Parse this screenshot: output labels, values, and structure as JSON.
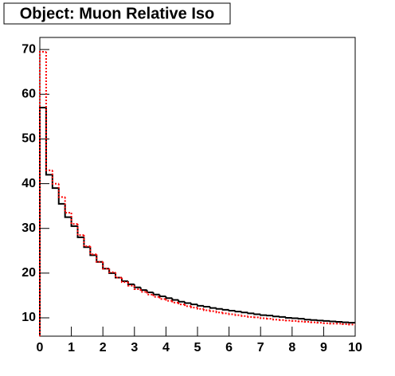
{
  "chart_data": {
    "type": "histogram",
    "title": "Object: Muon Relative Iso",
    "bins": [
      0,
      0.2,
      0.4,
      0.6,
      0.8,
      1,
      1.2,
      1.4,
      1.6,
      1.8,
      2,
      2.2,
      2.4,
      2.6,
      2.8,
      3,
      3.2,
      3.4,
      3.6,
      3.8,
      4,
      4.2,
      4.4,
      4.6,
      4.8,
      5,
      5.2,
      5.4,
      5.6,
      5.8,
      6,
      6.2,
      6.4,
      6.6,
      6.8,
      7,
      7.2,
      7.4,
      7.6,
      7.8,
      8,
      8.2,
      8.4,
      8.6,
      8.8,
      9,
      9.2,
      9.4,
      9.6,
      9.8,
      10
    ],
    "series": [
      {
        "color": "#000000",
        "style": "solid",
        "values": [
          57,
          42,
          39,
          35.5,
          32.5,
          30.5,
          28,
          25.8,
          24,
          22.5,
          21,
          20,
          19,
          18.2,
          17.5,
          16.8,
          16.2,
          15.7,
          15.2,
          14.8,
          14.4,
          14,
          13.6,
          13.3,
          13,
          12.7,
          12.5,
          12.2,
          12,
          11.8,
          11.6,
          11.4,
          11.2,
          11,
          10.8,
          10.6,
          10.5,
          10.3,
          10.2,
          10,
          9.9,
          9.8,
          9.6,
          9.5,
          9.4,
          9.3,
          9.2,
          9.1,
          9,
          8.9
        ]
      },
      {
        "color": "#ff0000",
        "style": "dotted",
        "values": [
          69.5,
          43,
          40,
          37,
          33.5,
          31,
          28.5,
          26,
          24.2,
          22.5,
          21,
          20.2,
          19,
          18,
          17.2,
          16.4,
          15.8,
          15.2,
          14.7,
          14.2,
          13.8,
          13.4,
          13,
          12.6,
          12.3,
          12,
          11.7,
          11.5,
          11.2,
          11,
          10.8,
          10.6,
          10.4,
          10.2,
          10.1,
          9.9,
          9.8,
          9.6,
          9.5,
          9.4,
          9.3,
          9.2,
          9.1,
          9,
          8.9,
          8.8,
          8.7,
          8.7,
          8.6,
          8.5
        ]
      }
    ],
    "xlim": [
      0,
      10
    ],
    "xticks": [
      0,
      1,
      2,
      3,
      4,
      5,
      6,
      7,
      8,
      9,
      10
    ],
    "ylim": [
      5.9,
      72.7
    ],
    "yticks": [
      10,
      20,
      30,
      40,
      50,
      60,
      70
    ]
  }
}
